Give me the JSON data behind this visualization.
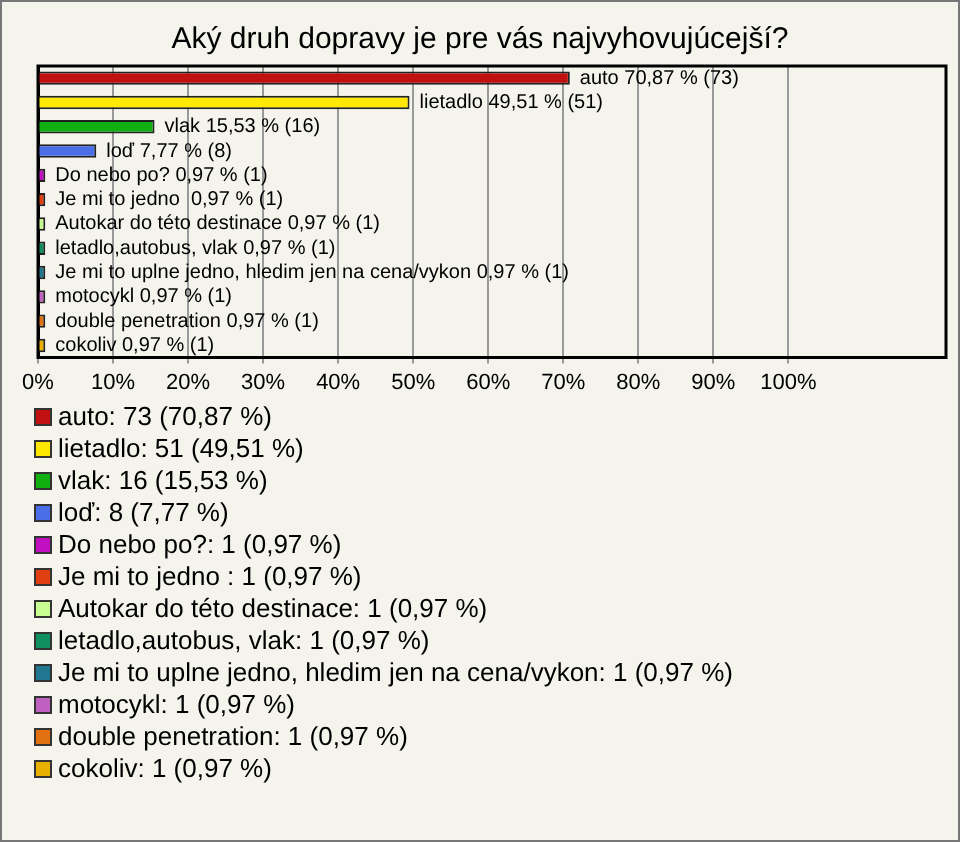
{
  "chart_data": {
    "type": "bar",
    "orientation": "horizontal",
    "title": "Aký druh dopravy je pre vás najvyhovujúcejší?",
    "categories": [
      null,
      null,
      null,
      null,
      null,
      null,
      null,
      null,
      null,
      null,
      null,
      null
    ],
    "series": [
      {
        "name": "auto: 73 (70,87 %)",
        "color": "#c01010",
        "values": [
          70.87,
          null,
          null,
          null,
          null,
          null,
          null,
          null,
          null,
          null,
          null,
          null
        ],
        "value_labels": [
          "auto 70,87 % (73)",
          null,
          null,
          null,
          null,
          null,
          null,
          null,
          null,
          null,
          null,
          null
        ]
      },
      {
        "name": "lietadlo: 51 (49,51 %)",
        "color": "#ffe800",
        "values": [
          null,
          49.51,
          null,
          null,
          null,
          null,
          null,
          null,
          null,
          null,
          null,
          null
        ],
        "value_labels": [
          null,
          "lietadlo 49,51 % (51)",
          null,
          null,
          null,
          null,
          null,
          null,
          null,
          null,
          null,
          null
        ]
      },
      {
        "name": "vlak: 16 (15,53 %)",
        "color": "#10b010",
        "values": [
          null,
          null,
          15.53,
          null,
          null,
          null,
          null,
          null,
          null,
          null,
          null,
          null
        ],
        "value_labels": [
          null,
          null,
          "vlak 15,53 % (16)",
          null,
          null,
          null,
          null,
          null,
          null,
          null,
          null,
          null
        ]
      },
      {
        "name": "loď: 8 (7,77 %)",
        "color": "#4a6ee8",
        "values": [
          null,
          null,
          null,
          7.77,
          null,
          null,
          null,
          null,
          null,
          null,
          null,
          null
        ],
        "value_labels": [
          null,
          null,
          null,
          "loď 7,77 % (8)",
          null,
          null,
          null,
          null,
          null,
          null,
          null,
          null
        ]
      },
      {
        "name": "Do nebo po?: 1 (0,97 %)",
        "color": "#c010c0",
        "values": [
          null,
          null,
          null,
          null,
          0.97,
          null,
          null,
          null,
          null,
          null,
          null,
          null
        ],
        "value_labels": [
          null,
          null,
          null,
          null,
          "Do nebo po? 0,97 % (1)",
          null,
          null,
          null,
          null,
          null,
          null,
          null
        ]
      },
      {
        "name": "Je mi to jedno : 1 (0,97 %)",
        "color": "#e04010",
        "values": [
          null,
          null,
          null,
          null,
          null,
          0.97,
          null,
          null,
          null,
          null,
          null,
          null
        ],
        "value_labels": [
          null,
          null,
          null,
          null,
          null,
          "Je mi to jedno  0,97 % (1)",
          null,
          null,
          null,
          null,
          null,
          null
        ]
      },
      {
        "name": "Autokar do této destinace: 1 (0,97 %)",
        "color": "#c8ff90",
        "values": [
          null,
          null,
          null,
          null,
          null,
          null,
          0.97,
          null,
          null,
          null,
          null,
          null
        ],
        "value_labels": [
          null,
          null,
          null,
          null,
          null,
          null,
          "Autokar do této destinace 0,97 % (1)",
          null,
          null,
          null,
          null,
          null
        ]
      },
      {
        "name": "letadlo,autobus, vlak: 1 (0,97 %)",
        "color": "#109060",
        "values": [
          null,
          null,
          null,
          null,
          null,
          null,
          null,
          0.97,
          null,
          null,
          null,
          null
        ],
        "value_labels": [
          null,
          null,
          null,
          null,
          null,
          null,
          null,
          "letadlo,autobus, vlak 0,97 % (1)",
          null,
          null,
          null,
          null
        ]
      },
      {
        "name": "Je mi to uplne jedno, hledim jen na cena/vykon: 1 (0,97 %)",
        "color": "#207890",
        "values": [
          null,
          null,
          null,
          null,
          null,
          null,
          null,
          null,
          0.97,
          null,
          null,
          null
        ],
        "value_labels": [
          null,
          null,
          null,
          null,
          null,
          null,
          null,
          null,
          "Je mi to uplne jedno, hledim jen na cena/vykon 0,97 % (1)",
          null,
          null,
          null
        ]
      },
      {
        "name": "motocykl: 1 (0,97 %)",
        "color": "#c060c0",
        "values": [
          null,
          null,
          null,
          null,
          null,
          null,
          null,
          null,
          null,
          0.97,
          null,
          null
        ],
        "value_labels": [
          null,
          null,
          null,
          null,
          null,
          null,
          null,
          null,
          null,
          "motocykl 0,97 % (1)",
          null,
          null
        ]
      },
      {
        "name": "double penetration: 1 (0,97 %)",
        "color": "#e07010",
        "values": [
          null,
          null,
          null,
          null,
          null,
          null,
          null,
          null,
          null,
          null,
          0.97,
          null
        ],
        "value_labels": [
          null,
          null,
          null,
          null,
          null,
          null,
          null,
          null,
          null,
          null,
          "double penetration 0,97 % (1)",
          null
        ]
      },
      {
        "name": "cokoliv: 1 (0,97 %)",
        "color": "#e8b000",
        "values": [
          null,
          null,
          null,
          null,
          null,
          null,
          null,
          null,
          null,
          null,
          null,
          0.97
        ],
        "value_labels": [
          null,
          null,
          null,
          null,
          null,
          null,
          null,
          null,
          null,
          null,
          null,
          "cokoliv 0,97 % (1)"
        ]
      }
    ],
    "xlim": [
      0,
      121
    ],
    "xticks": [
      {
        "value": 0,
        "label": "0%"
      },
      {
        "value": 10,
        "label": "10%"
      },
      {
        "value": 20,
        "label": "20%"
      },
      {
        "value": 30,
        "label": "30%"
      },
      {
        "value": 40,
        "label": "40%"
      },
      {
        "value": 50,
        "label": "50%"
      },
      {
        "value": 60,
        "label": "60%"
      },
      {
        "value": 70,
        "label": "70%"
      },
      {
        "value": 80,
        "label": "80%"
      },
      {
        "value": 90,
        "label": "90%"
      },
      {
        "value": 100,
        "label": "100%"
      }
    ],
    "grid": "x",
    "legend": "bottom"
  }
}
